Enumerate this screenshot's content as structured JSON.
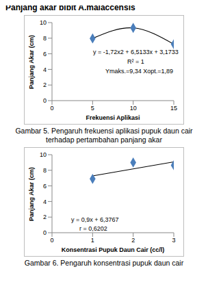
{
  "heading": "Panjang akar bibit A.malaccensis",
  "chart_data": [
    {
      "type": "scatter",
      "caption": "Gambar 5. Pengaruh frekuensi aplikasi pupuk daun cair terhadap pertambahan panjang akar",
      "x_label": "Frekuensi Aplikasi",
      "y_label": "Panjang Akar (cm)",
      "xlim": [
        0,
        15
      ],
      "xticks": [
        0,
        5,
        10,
        15
      ],
      "ylim": [
        0,
        10
      ],
      "yticks": [
        0,
        2,
        4,
        6,
        8,
        10
      ],
      "grid": false,
      "annotations": [
        "y = -1,72x2 + 6,5133x + 3,1733",
        "R² = 1",
        "Ymaks.=9,34 Xopt.=1,89"
      ],
      "series": [
        {
          "type": "line",
          "line_style": "smooth",
          "marker": "none",
          "color": "#000000",
          "x": [
            5,
            10,
            15
          ],
          "values": [
            7.97,
            9.32,
            7.23
          ]
        },
        {
          "type": "scatter",
          "marker": "diamond",
          "color": "#4a7ebb",
          "x": [
            5,
            10,
            15
          ],
          "values": [
            7.97,
            9.32,
            7.23
          ]
        }
      ]
    },
    {
      "type": "scatter",
      "caption": "Gambar 6. Pengaruh konsentrasi pupuk daun cair",
      "x_label": "Konsentrasi Pupuk Daun Cair (cc/l)",
      "y_label": "Panjang Akar (cm)",
      "xlim": [
        0,
        3
      ],
      "xticks": [
        0,
        1,
        2,
        3
      ],
      "ylim": [
        0,
        10
      ],
      "yticks": [
        0,
        2,
        4,
        6,
        8,
        10
      ],
      "grid": false,
      "annotations": [
        "y = 0,9x + 6,3767",
        "r = 0,6202"
      ],
      "series": [
        {
          "type": "line",
          "line_style": "straight",
          "marker": "none",
          "color": "#000000",
          "x": [
            1,
            3
          ],
          "values": [
            7.28,
            9.08
          ]
        },
        {
          "type": "scatter",
          "marker": "diamond",
          "color": "#4a7ebb",
          "x": [
            1,
            2,
            3
          ],
          "values": [
            6.9,
            9.0,
            8.65
          ]
        }
      ]
    }
  ]
}
